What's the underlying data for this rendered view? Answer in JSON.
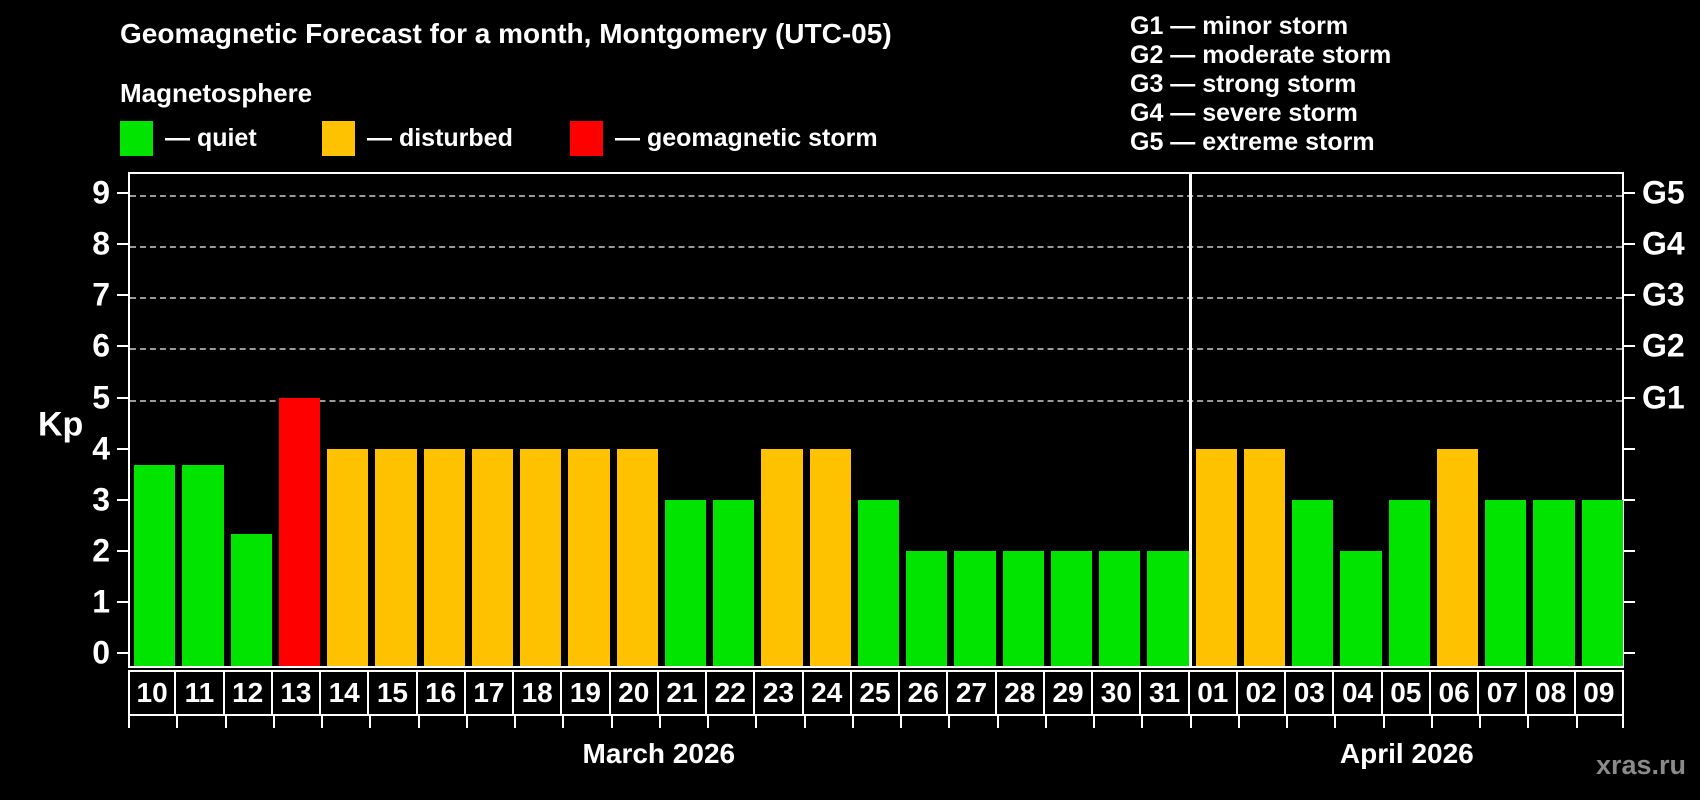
{
  "title": "Geomagnetic Forecast for a month, Montgomery (UTC-05)",
  "subtitle": "Magnetosphere",
  "watermark": "xras.ru",
  "colors": {
    "background": "#000000",
    "frame": "#ffffff",
    "grid": "#9a9a9a",
    "text": "#ffffff",
    "watermark": "#8a8a8a",
    "quiet": "#00e400",
    "disturbed": "#ffc200",
    "storm": "#ff0000"
  },
  "legend": {
    "items": [
      {
        "status": "quiet",
        "label": "— quiet"
      },
      {
        "status": "disturbed",
        "label": "— disturbed"
      },
      {
        "status": "storm",
        "label": "— geomagnetic storm"
      }
    ],
    "x_positions": [
      120,
      322,
      570
    ]
  },
  "g_legend": [
    "G1 — minor storm",
    "G2 — moderate storm",
    "G3 — strong storm",
    "G4 — severe storm",
    "G5 — extreme storm"
  ],
  "axis": {
    "ylabel": "Kp",
    "yticks": [
      0,
      1,
      2,
      3,
      4,
      5,
      6,
      7,
      8,
      9
    ],
    "right_scale": {
      "5": "G1",
      "6": "G2",
      "7": "G3",
      "8": "G4",
      "9": "G5"
    },
    "grid_levels": [
      5,
      6,
      7,
      8,
      9
    ]
  },
  "chart_data": {
    "type": "bar",
    "title": "Geomagnetic Forecast for a month, Montgomery (UTC-05)",
    "xlabel": "",
    "ylabel": "Kp",
    "ylim": [
      0,
      9
    ],
    "grid": "dashed horizontal at Kp 5-9 (G1-G5)",
    "legend_position": "top-left",
    "months": [
      {
        "name": "March 2026",
        "days": 22
      },
      {
        "name": "April 2026",
        "days": 9
      }
    ],
    "categories": [
      "10",
      "11",
      "12",
      "13",
      "14",
      "15",
      "16",
      "17",
      "18",
      "19",
      "20",
      "21",
      "22",
      "23",
      "24",
      "25",
      "26",
      "27",
      "28",
      "29",
      "30",
      "31",
      "01",
      "02",
      "03",
      "04",
      "05",
      "06",
      "07",
      "08",
      "09"
    ],
    "values": [
      3.67,
      3.67,
      2.33,
      5,
      4,
      4,
      4,
      4,
      4,
      4,
      4,
      3,
      3,
      4,
      4,
      3,
      2,
      2,
      2,
      2,
      2,
      2,
      4,
      4,
      3,
      2,
      3,
      4,
      3,
      3,
      3
    ],
    "statuses": [
      "quiet",
      "quiet",
      "quiet",
      "storm",
      "disturbed",
      "disturbed",
      "disturbed",
      "disturbed",
      "disturbed",
      "disturbed",
      "disturbed",
      "quiet",
      "quiet",
      "disturbed",
      "disturbed",
      "quiet",
      "quiet",
      "quiet",
      "quiet",
      "quiet",
      "quiet",
      "quiet",
      "disturbed",
      "disturbed",
      "quiet",
      "quiet",
      "quiet",
      "disturbed",
      "quiet",
      "quiet",
      "quiet"
    ]
  }
}
